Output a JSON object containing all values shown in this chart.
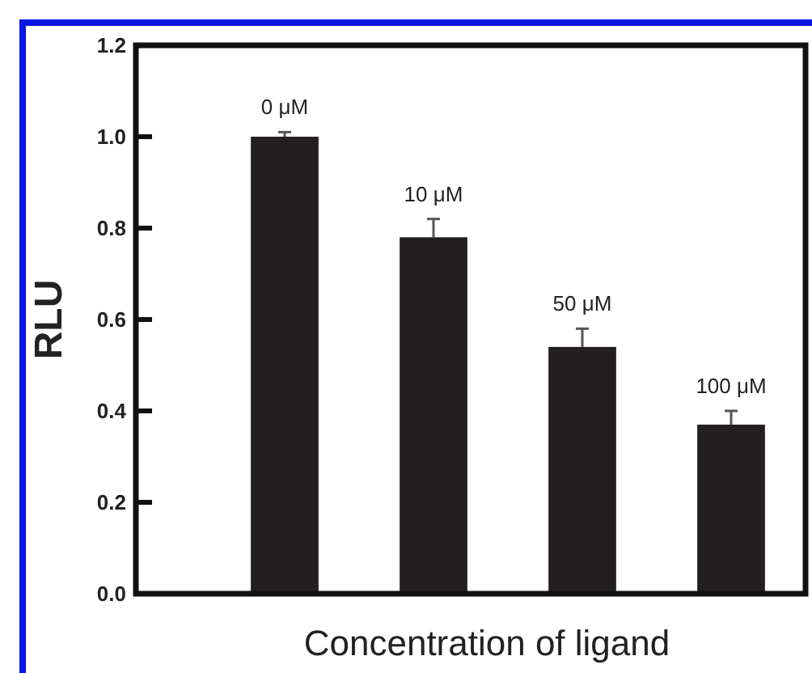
{
  "chart_data": {
    "type": "bar",
    "xlabel": "Concentration of ligand",
    "ylabel": "RLU",
    "categories": [
      "0 μM",
      "10 μM",
      "50 μM",
      "100 μM"
    ],
    "values": [
      1.0,
      0.78,
      0.54,
      0.37
    ],
    "errors": [
      0.01,
      0.04,
      0.04,
      0.03
    ],
    "color": "#231f20",
    "ylim": [
      0,
      1.2
    ],
    "yticks": [
      {
        "value": 0,
        "label": "0.0"
      },
      {
        "value": 0.2,
        "label": "0.2"
      },
      {
        "value": 0.4,
        "label": "0.4"
      },
      {
        "value": 0.6,
        "label": "0.6"
      },
      {
        "value": 0.8,
        "label": "0.8"
      },
      {
        "value": 1,
        "label": "1.0"
      },
      {
        "value": 1.2,
        "label": "1.2"
      }
    ],
    "grid": false
  }
}
